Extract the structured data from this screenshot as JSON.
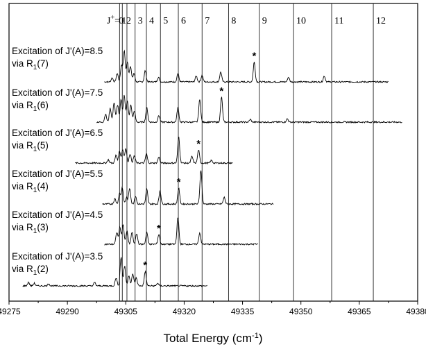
{
  "chart_data": {
    "type": "line",
    "xlabel_main": "Total Energy (cm",
    "xlabel_sup": "-1",
    "xlabel_tail": ")",
    "xlim": [
      49275,
      49380
    ],
    "x_ticks": [
      "49275",
      "49290",
      "49305",
      "49320",
      "49335",
      "49350",
      "49365",
      "49380"
    ],
    "j_label_prefix": "J",
    "j_label_sup": "+",
    "j_label_eq": "=",
    "j_levels": [
      {
        "label": "0",
        "energy": 49303.4
      },
      {
        "label": "1",
        "energy": 49304.1
      },
      {
        "label": "2",
        "energy": 49305.3
      },
      {
        "label": "3",
        "energy": 49307.4
      },
      {
        "label": "4",
        "energy": 49310.3
      },
      {
        "label": "5",
        "energy": 49313.9
      },
      {
        "label": "6",
        "energy": 49318.5
      },
      {
        "label": "7",
        "energy": 49324.6
      },
      {
        "label": "8",
        "energy": 49331.4
      },
      {
        "label": "9",
        "energy": 49339.3
      },
      {
        "label": "10",
        "energy": 49348.1
      },
      {
        "label": "11",
        "energy": 49357.9
      },
      {
        "label": "12",
        "energy": 49368.6
      }
    ],
    "series": [
      {
        "label_line1": "Excitation of J'(A)=8.5",
        "label_line2_pre": "via R",
        "label_line2_sub": "1",
        "label_line2_post": "(7)",
        "x_start": 49299.5,
        "x_end": 49372.5,
        "star_x": 49338.0,
        "peaks": [
          [
            49301.5,
            6
          ],
          [
            49302.8,
            13
          ],
          [
            49303.9,
            25
          ],
          [
            49304.6,
            47
          ],
          [
            49305.4,
            30
          ],
          [
            49306.2,
            24
          ],
          [
            49307.1,
            13
          ],
          [
            49310.0,
            17
          ],
          [
            49313.4,
            7
          ],
          [
            49318.4,
            13
          ],
          [
            49323.1,
            9
          ],
          [
            49324.6,
            10
          ],
          [
            49329.4,
            15
          ],
          [
            49338.0,
            30
          ],
          [
            49346.8,
            7
          ],
          [
            49356.0,
            9
          ]
        ]
      },
      {
        "label_line1": "Excitation of J'(A)=7.5",
        "label_line2_pre": "via R",
        "label_line2_sub": "1",
        "label_line2_post": "(6)",
        "x_start": 49297.5,
        "x_end": 49376.0,
        "star_x": 49329.6,
        "peaks": [
          [
            49299.8,
            12
          ],
          [
            49301.0,
            21
          ],
          [
            49302.0,
            30
          ],
          [
            49302.9,
            26
          ],
          [
            49303.8,
            34
          ],
          [
            49304.6,
            40
          ],
          [
            49305.4,
            32
          ],
          [
            49306.3,
            26
          ],
          [
            49307.2,
            17
          ],
          [
            49310.4,
            22
          ],
          [
            49313.5,
            10
          ],
          [
            49318.4,
            22
          ],
          [
            49324.0,
            34
          ],
          [
            49329.6,
            38
          ],
          [
            49337.0,
            4
          ],
          [
            49346.5,
            5
          ]
        ]
      },
      {
        "label_line1": "Excitation of J'(A)=6.5",
        "label_line2_pre": "via R",
        "label_line2_sub": "1",
        "label_line2_post": "(5)",
        "x_start": 49292.0,
        "x_end": 49332.5,
        "star_x": 49323.7,
        "peaks": [
          [
            49300.5,
            5
          ],
          [
            49302.5,
            12
          ],
          [
            49303.4,
            18
          ],
          [
            49304.2,
            20
          ],
          [
            49305.0,
            22
          ],
          [
            49306.1,
            14
          ],
          [
            49307.2,
            11
          ],
          [
            49310.3,
            14
          ],
          [
            49313.5,
            9
          ],
          [
            49318.6,
            40
          ],
          [
            49322.0,
            10
          ],
          [
            49323.7,
            20
          ],
          [
            49327.0,
            4
          ]
        ]
      },
      {
        "label_line1": "Excitation of J'(A)=5.5",
        "label_line2_pre": "via R",
        "label_line2_sub": "1",
        "label_line2_post": "(4)",
        "x_start": 49299.0,
        "x_end": 49343.0,
        "star_x": 49318.6,
        "peaks": [
          [
            49302.2,
            8
          ],
          [
            49303.4,
            16
          ],
          [
            49304.1,
            25
          ],
          [
            49305.2,
            10
          ],
          [
            49306.0,
            24
          ],
          [
            49307.5,
            12
          ],
          [
            49310.4,
            22
          ],
          [
            49313.8,
            20
          ],
          [
            49318.6,
            24
          ],
          [
            49324.3,
            52
          ],
          [
            49330.3,
            10
          ]
        ]
      },
      {
        "label_line1": "Excitation of J'(A)=4.5",
        "label_line2_pre": "via R",
        "label_line2_sub": "1",
        "label_line2_post": "(3)",
        "x_start": 49299.5,
        "x_end": 49339.0,
        "star_x": 49313.5,
        "peaks": [
          [
            49302.7,
            18
          ],
          [
            49303.5,
            26
          ],
          [
            49304.3,
            30
          ],
          [
            49305.3,
            20
          ],
          [
            49306.6,
            18
          ],
          [
            49307.8,
            16
          ],
          [
            49310.4,
            18
          ],
          [
            49313.5,
            15
          ],
          [
            49318.4,
            42
          ],
          [
            49324.0,
            17
          ]
        ]
      },
      {
        "label_line1": "Excitation of J'(A)=3.5",
        "label_line2_pre": "via R",
        "label_line2_sub": "1",
        "label_line2_post": "(2)",
        "x_start": 49278.5,
        "x_end": 49326.0,
        "star_x": 49310.0,
        "peaks": [
          [
            49280.0,
            5
          ],
          [
            49281.5,
            4
          ],
          [
            49285.2,
            3
          ],
          [
            49297.0,
            5
          ],
          [
            49302.5,
            12
          ],
          [
            49303.8,
            44
          ],
          [
            49304.7,
            30
          ],
          [
            49305.8,
            16
          ],
          [
            49306.8,
            18
          ],
          [
            49307.7,
            12
          ],
          [
            49310.0,
            22
          ],
          [
            49313.2,
            4
          ]
        ]
      }
    ],
    "marker": "*"
  }
}
